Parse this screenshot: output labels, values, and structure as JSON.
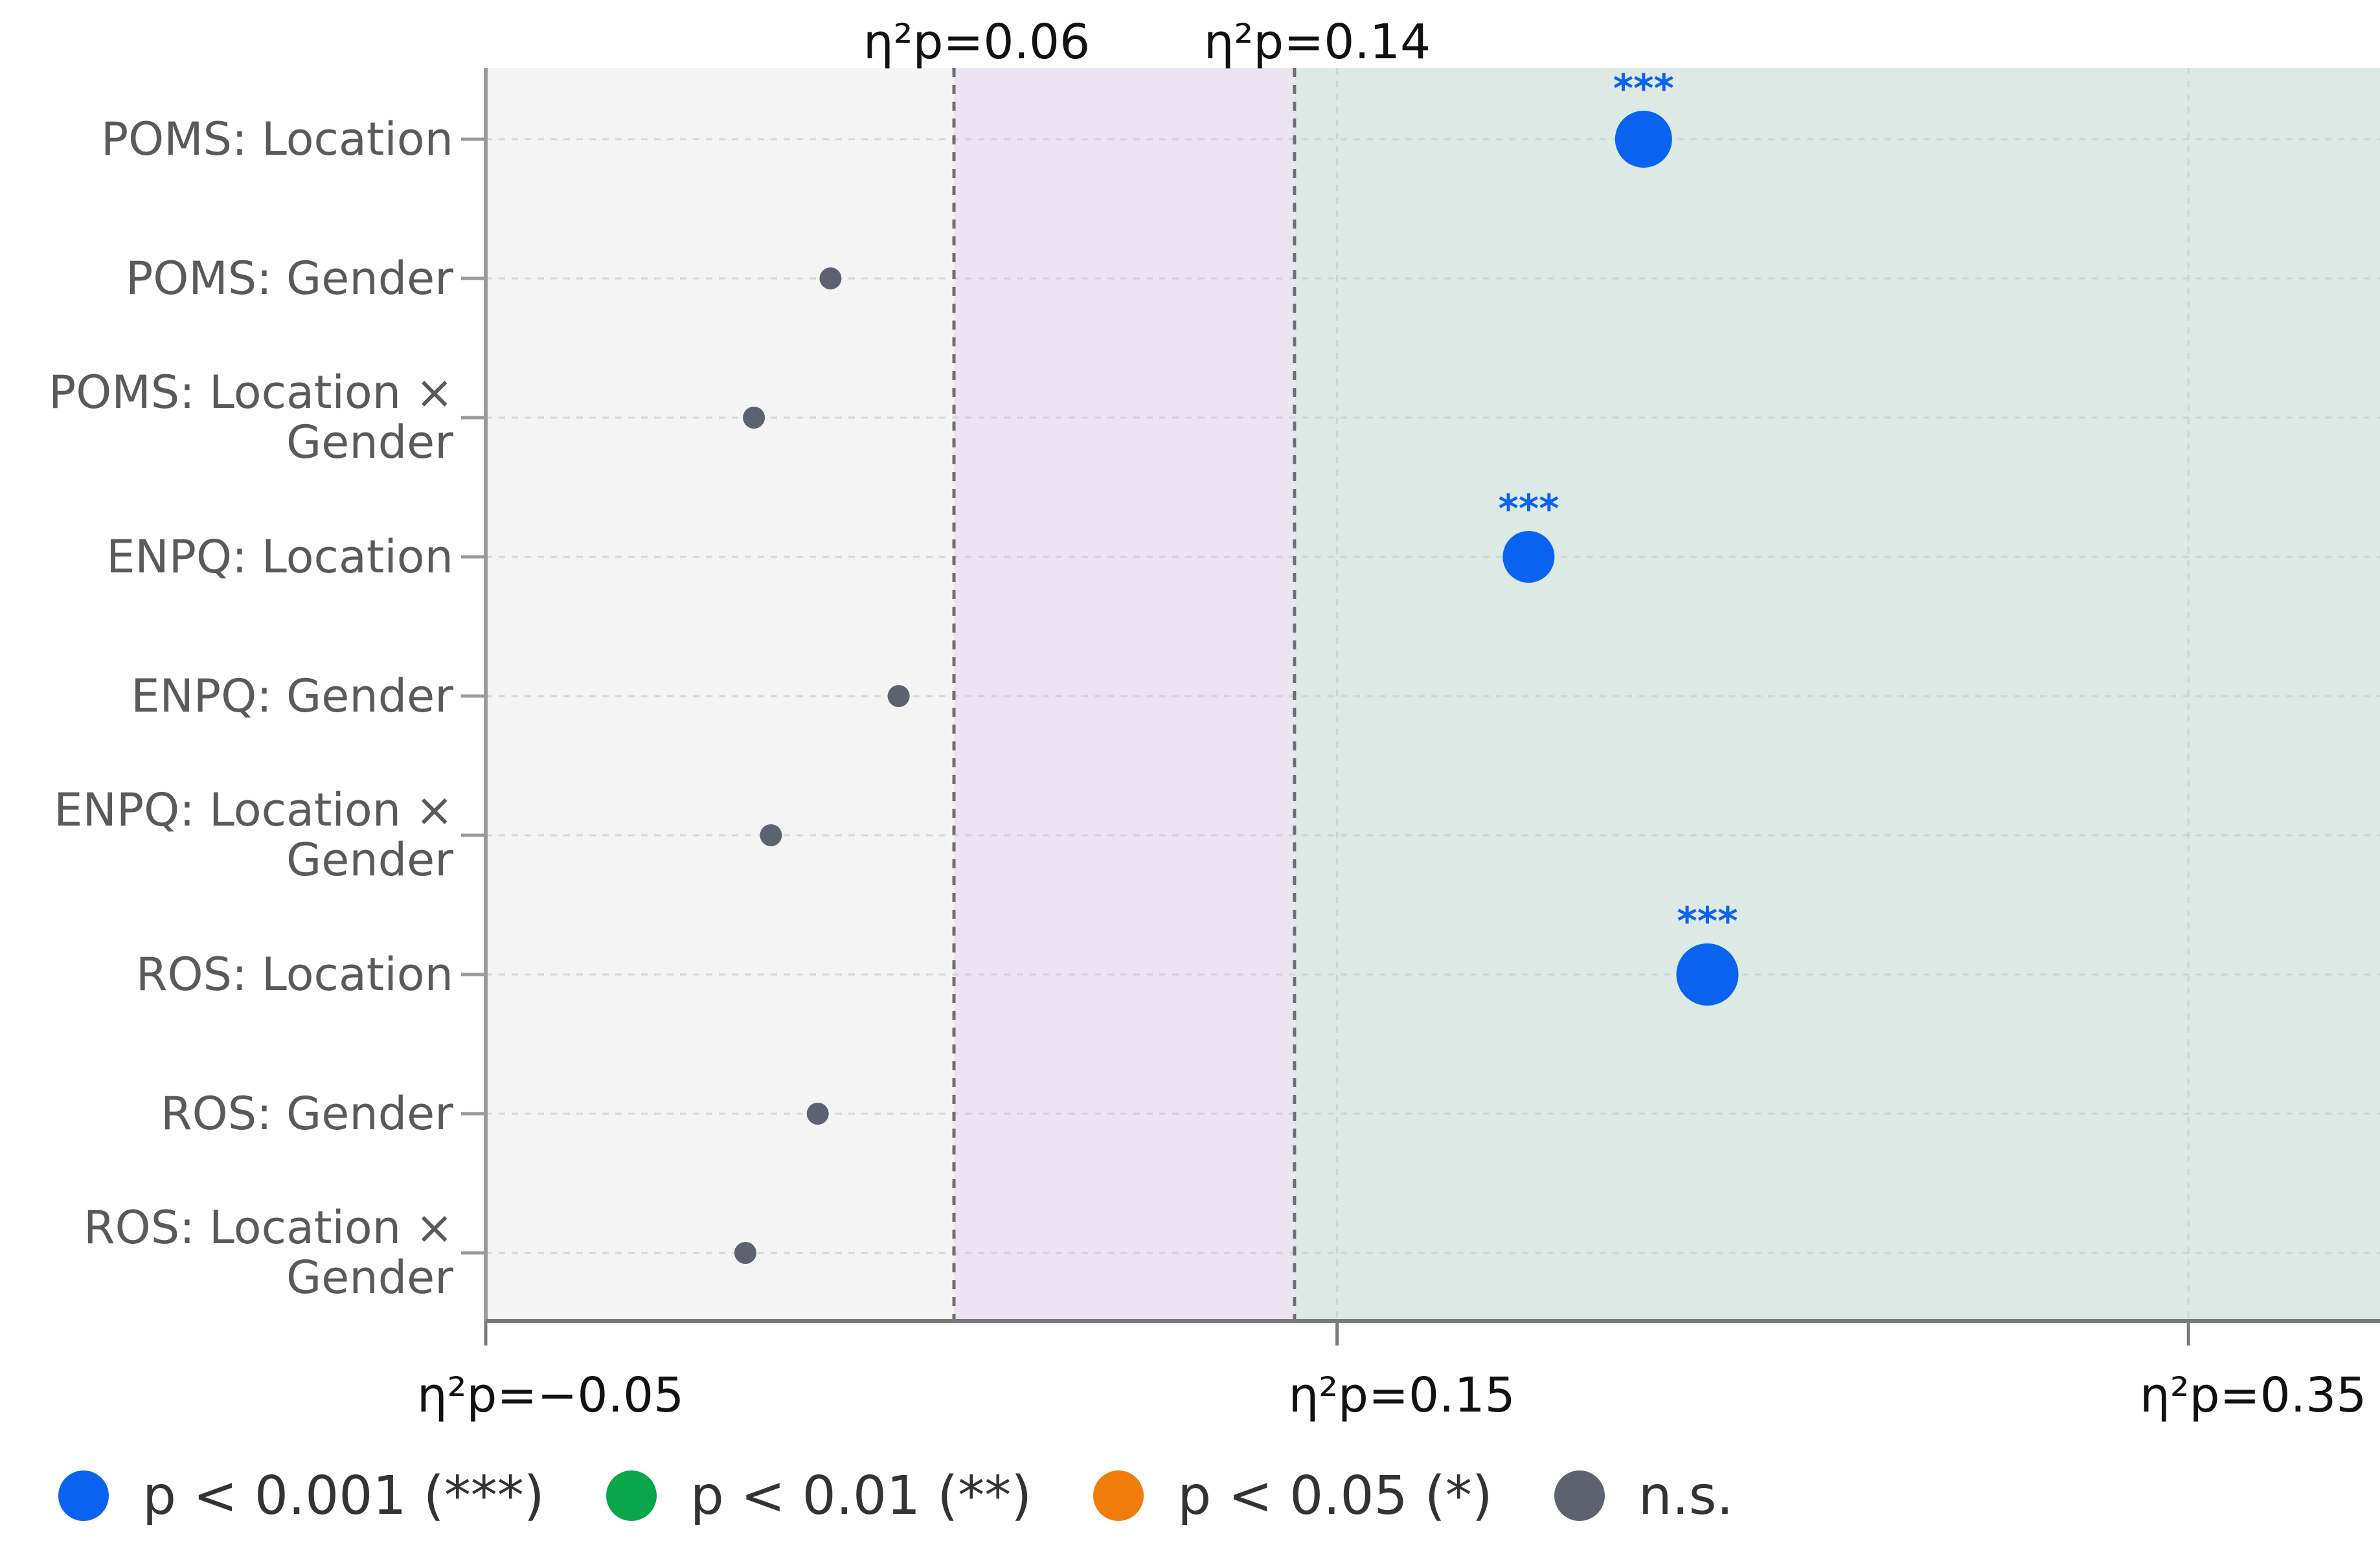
{
  "chart_data": {
    "type": "scatter",
    "orientation": "horizontal",
    "categories": [
      [
        "POMS: Location"
      ],
      [
        "POMS: Gender"
      ],
      [
        "POMS: Location ×",
        "Gender"
      ],
      [
        "ENPQ: Location"
      ],
      [
        "ENPQ: Gender"
      ],
      [
        "ENPQ: Location ×",
        "Gender"
      ],
      [
        "ROS: Location"
      ],
      [
        "ROS: Gender"
      ],
      [
        "ROS: Location ×",
        "Gender"
      ]
    ],
    "values": [
      0.222,
      0.031,
      0.013,
      0.195,
      0.047,
      0.017,
      0.237,
      0.028,
      0.011
    ],
    "significance": [
      "***",
      "ns",
      "ns",
      "***",
      "ns",
      "ns",
      "***",
      "ns",
      "ns"
    ],
    "xlim": [
      -0.05,
      0.395
    ],
    "x_ticks": [
      {
        "value": -0.05,
        "label": "η²p=−0.05"
      },
      {
        "value": 0.15,
        "label": "η²p=0.15"
      },
      {
        "value": 0.35,
        "label": "η²p=0.35"
      }
    ],
    "thresholds": [
      {
        "value": 0.06,
        "label": "η²p=0.06"
      },
      {
        "value": 0.14,
        "label": "η²p=0.14"
      }
    ],
    "regions": [
      {
        "from": -0.05,
        "to": 0.06,
        "color": "#f4f4f4"
      },
      {
        "from": 0.06,
        "to": 0.14,
        "color": "#ece4f2"
      },
      {
        "from": 0.14,
        "to": 0.395,
        "color": "#dde9e4"
      }
    ],
    "grid": true,
    "legend": {
      "position": "bottom",
      "items": [
        {
          "label": "p < 0.001 (***)",
          "color": "#0a63f0",
          "sig": "***"
        },
        {
          "label": "p < 0.01 (**)",
          "color": "#0aa64a",
          "sig": "**"
        },
        {
          "label": "p < 0.05 (*)",
          "color": "#f07d0a",
          "sig": "*"
        },
        {
          "label": "n.s.",
          "color": "#5c6270",
          "sig": "ns"
        }
      ]
    }
  }
}
